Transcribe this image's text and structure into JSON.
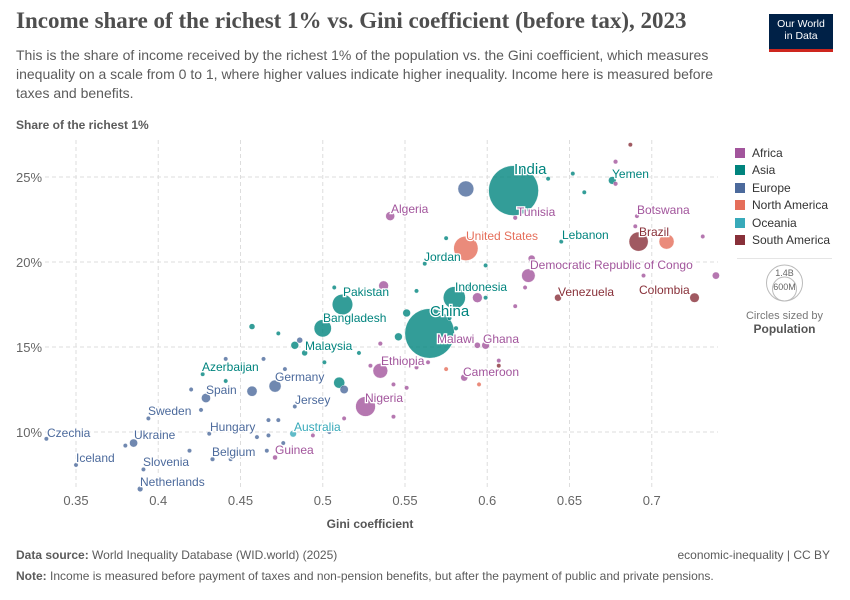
{
  "header": {
    "title": "Income share of the richest 1% vs. Gini coefficient (before tax), 2023",
    "subtitle": "This is the share of income received by the richest 1% of the population vs. the Gini coefficient, which measures inequality on a scale from 0 to 1, where higher values indicate higher inequality. Income here is measured before taxes and benefits.",
    "logo": [
      "Our World",
      "in Data"
    ]
  },
  "legend": {
    "regions": [
      {
        "name": "Africa",
        "color": "#a2559c"
      },
      {
        "name": "Asia",
        "color": "#00847e"
      },
      {
        "name": "Europe",
        "color": "#4c6a9c"
      },
      {
        "name": "North America",
        "color": "#e56e5a"
      },
      {
        "name": "Oceania",
        "color": "#38aaba"
      },
      {
        "name": "South America",
        "color": "#883039"
      }
    ],
    "size_large": "1.4B",
    "size_small": "600M",
    "size_caption": "Circles sized by",
    "size_variable": "Population"
  },
  "footer": {
    "source_label": "Data source:",
    "source": "World Inequality Database (WID.world) (2025)",
    "license": "economic-inequality | CC BY",
    "note_label": "Note:",
    "note": "Income is measured before payment of taxes and non-pension benefits, but after the payment of public and private pensions."
  },
  "chart_data": {
    "type": "scatter",
    "xlabel": "Gini coefficient",
    "ylabel": "Share of the richest 1%",
    "xlim": [
      0.331,
      0.74
    ],
    "ylim": [
      6.3,
      27.2
    ],
    "x_ticks": [
      0.35,
      0.4,
      0.45,
      0.5,
      0.55,
      0.6,
      0.65,
      0.7
    ],
    "x_tick_labels": [
      "0.35",
      "0.4",
      "0.45",
      "0.5",
      "0.55",
      "0.6",
      "0.65",
      "0.7"
    ],
    "y_ticks": [
      10,
      15,
      20,
      25
    ],
    "y_tick_labels": [
      "10%",
      "15%",
      "20%",
      "25%"
    ],
    "grid": true,
    "legend_position": "right",
    "points": [
      {
        "label": "India",
        "region": "Asia",
        "x": 0.616,
        "y": 24.2,
        "pop": 1430
      },
      {
        "label": "China",
        "region": "Asia",
        "x": 0.565,
        "y": 15.8,
        "pop": 1410
      },
      {
        "label": "United States",
        "region": "North America",
        "x": 0.587,
        "y": 20.8,
        "pop": 340
      },
      {
        "label": "Indonesia",
        "region": "Asia",
        "x": 0.58,
        "y": 17.9,
        "pop": 280
      },
      {
        "label": "Pakistan",
        "region": "Asia",
        "x": 0.512,
        "y": 17.5,
        "pop": 240
      },
      {
        "label": "Nigeria",
        "region": "Africa",
        "x": 0.526,
        "y": 11.5,
        "pop": 225
      },
      {
        "label": "Brazil",
        "region": "South America",
        "x": 0.692,
        "y": 21.2,
        "pop": 210
      },
      {
        "label": "Bangladesh",
        "region": "Asia",
        "x": 0.5,
        "y": 16.1,
        "pop": 172
      },
      {
        "label": "Ethiopia",
        "region": "Africa",
        "x": 0.535,
        "y": 13.6,
        "pop": 125
      },
      {
        "label": "Democratic Republic of Congo",
        "region": "Africa",
        "x": 0.625,
        "y": 19.2,
        "pop": 105
      },
      {
        "label": "Germany",
        "region": "Europe",
        "x": 0.471,
        "y": 12.7,
        "pop": 84
      },
      {
        "label": "Yemen",
        "region": "Asia",
        "x": 0.676,
        "y": 24.8,
        "pop": 34
      },
      {
        "label": "Tunisia",
        "region": "Africa",
        "x": 0.617,
        "y": 22.6,
        "pop": 12
      },
      {
        "label": "Algeria",
        "region": "Africa",
        "x": 0.541,
        "y": 22.7,
        "pop": 46
      },
      {
        "label": "Botswana",
        "region": "Africa",
        "x": 0.691,
        "y": 22.7,
        "pop": 3
      },
      {
        "label": "Lebanon",
        "region": "Asia",
        "x": 0.645,
        "y": 21.2,
        "pop": 5
      },
      {
        "label": "Jordan",
        "region": "Asia",
        "x": 0.562,
        "y": 19.9,
        "pop": 11
      },
      {
        "label": "Venezuela",
        "region": "South America",
        "x": 0.643,
        "y": 17.9,
        "pop": 28
      },
      {
        "label": "Colombia",
        "region": "South America",
        "x": 0.726,
        "y": 17.9,
        "pop": 52
      },
      {
        "label": "Malawi",
        "region": "Africa",
        "x": 0.594,
        "y": 15.1,
        "pop": 21
      },
      {
        "label": "Ghana",
        "region": "Africa",
        "x": 0.599,
        "y": 15.1,
        "pop": 34
      },
      {
        "label": "Cameroon",
        "region": "Africa",
        "x": 0.586,
        "y": 13.2,
        "pop": 28
      },
      {
        "label": "Malaysia",
        "region": "Asia",
        "x": 0.483,
        "y": 15.1,
        "pop": 35
      },
      {
        "label": "Azerbaijan",
        "region": "Asia",
        "x": 0.427,
        "y": 13.4,
        "pop": 10
      },
      {
        "label": "Spain",
        "region": "Europe",
        "x": 0.429,
        "y": 12.0,
        "pop": 48
      },
      {
        "label": "Jersey",
        "region": "Europe",
        "x": 0.483,
        "y": 11.5,
        "pop": 0.1
      },
      {
        "label": "Sweden",
        "region": "Europe",
        "x": 0.394,
        "y": 10.8,
        "pop": 10
      },
      {
        "label": "Hungary",
        "region": "Europe",
        "x": 0.431,
        "y": 9.9,
        "pop": 10
      },
      {
        "label": "Australia",
        "region": "Oceania",
        "x": 0.482,
        "y": 9.9,
        "pop": 26
      },
      {
        "label": "Czechia",
        "region": "Europe",
        "x": 0.332,
        "y": 9.6,
        "pop": 11
      },
      {
        "label": "Ukraine",
        "region": "Europe",
        "x": 0.385,
        "y": 9.35,
        "pop": 38
      },
      {
        "label": "Belgium",
        "region": "Europe",
        "x": 0.433,
        "y": 8.4,
        "pop": 12
      },
      {
        "label": "Guinea",
        "region": "Africa",
        "x": 0.471,
        "y": 8.5,
        "pop": 14
      },
      {
        "label": "Iceland",
        "region": "Europe",
        "x": 0.35,
        "y": 8.06,
        "pop": 0.4
      },
      {
        "label": "Slovenia",
        "region": "Europe",
        "x": 0.391,
        "y": 7.8,
        "pop": 2
      },
      {
        "label": "Netherlands",
        "region": "Europe",
        "x": 0.389,
        "y": 6.65,
        "pop": 18
      },
      {
        "region": "South America",
        "x": 0.687,
        "y": 26.9,
        "pop": 10
      },
      {
        "region": "Africa",
        "x": 0.678,
        "y": 25.9,
        "pop": 12
      },
      {
        "region": "Africa",
        "x": 0.678,
        "y": 24.6,
        "pop": 12
      },
      {
        "region": "Asia",
        "x": 0.652,
        "y": 25.2,
        "pop": 4
      },
      {
        "region": "Asia",
        "x": 0.637,
        "y": 24.9,
        "pop": 8
      },
      {
        "region": "Asia",
        "x": 0.659,
        "y": 24.1,
        "pop": 4
      },
      {
        "region": "Europe",
        "x": 0.587,
        "y": 24.3,
        "pop": 145
      },
      {
        "region": "Africa",
        "x": 0.69,
        "y": 22.1,
        "pop": 6
      },
      {
        "region": "North America",
        "x": 0.709,
        "y": 21.2,
        "pop": 130
      },
      {
        "region": "Africa",
        "x": 0.731,
        "y": 21.5,
        "pop": 5
      },
      {
        "region": "Africa",
        "x": 0.739,
        "y": 19.2,
        "pop": 30
      },
      {
        "region": "Africa",
        "x": 0.695,
        "y": 19.2,
        "pop": 6
      },
      {
        "region": "Africa",
        "x": 0.656,
        "y": 19.9,
        "pop": 6
      },
      {
        "region": "Africa",
        "x": 0.668,
        "y": 18.1,
        "pop": 8
      },
      {
        "region": "Asia",
        "x": 0.575,
        "y": 21.4,
        "pop": 8
      },
      {
        "region": "Africa",
        "x": 0.627,
        "y": 20.2,
        "pop": 28
      },
      {
        "region": "Asia",
        "x": 0.599,
        "y": 19.8,
        "pop": 8
      },
      {
        "region": "Asia",
        "x": 0.588,
        "y": 18.5,
        "pop": 8
      },
      {
        "region": "Africa",
        "x": 0.594,
        "y": 17.9,
        "pop": 55
      },
      {
        "region": "Asia",
        "x": 0.599,
        "y": 17.9,
        "pop": 6
      },
      {
        "region": "Africa",
        "x": 0.617,
        "y": 17.4,
        "pop": 6
      },
      {
        "region": "Africa",
        "x": 0.623,
        "y": 18.5,
        "pop": 6
      },
      {
        "region": "Africa",
        "x": 0.537,
        "y": 18.6,
        "pop": 55
      },
      {
        "region": "Asia",
        "x": 0.507,
        "y": 18.5,
        "pop": 5
      },
      {
        "region": "Asia",
        "x": 0.557,
        "y": 18.3,
        "pop": 5
      },
      {
        "region": "Asia",
        "x": 0.551,
        "y": 17.0,
        "pop": 35
      },
      {
        "region": "Asia",
        "x": 0.546,
        "y": 15.6,
        "pop": 35
      },
      {
        "region": "Africa",
        "x": 0.535,
        "y": 15.2,
        "pop": 12
      },
      {
        "region": "Asia",
        "x": 0.577,
        "y": 16.7,
        "pop": 12
      },
      {
        "region": "Asia",
        "x": 0.581,
        "y": 16.1,
        "pop": 12
      },
      {
        "region": "Asia",
        "x": 0.457,
        "y": 16.2,
        "pop": 20
      },
      {
        "region": "Asia",
        "x": 0.473,
        "y": 15.8,
        "pop": 6
      },
      {
        "region": "Europe",
        "x": 0.486,
        "y": 15.4,
        "pop": 20
      },
      {
        "region": "Asia",
        "x": 0.489,
        "y": 14.65,
        "pop": 20
      },
      {
        "region": "Europe",
        "x": 0.464,
        "y": 14.3,
        "pop": 6
      },
      {
        "region": "Asia",
        "x": 0.522,
        "y": 14.65,
        "pop": 8
      },
      {
        "region": "Asia",
        "x": 0.501,
        "y": 14.1,
        "pop": 10
      },
      {
        "region": "Africa",
        "x": 0.529,
        "y": 13.9,
        "pop": 10
      },
      {
        "region": "Africa",
        "x": 0.557,
        "y": 13.8,
        "pop": 10
      },
      {
        "region": "North America",
        "x": 0.575,
        "y": 13.7,
        "pop": 6
      },
      {
        "region": "Africa",
        "x": 0.564,
        "y": 14.1,
        "pop": 10
      },
      {
        "region": "Africa",
        "x": 0.607,
        "y": 14.2,
        "pop": 8
      },
      {
        "region": "South America",
        "x": 0.607,
        "y": 13.9,
        "pop": 6
      },
      {
        "region": "Asia",
        "x": 0.51,
        "y": 12.9,
        "pop": 70
      },
      {
        "region": "Europe",
        "x": 0.513,
        "y": 12.5,
        "pop": 40
      },
      {
        "region": "Africa",
        "x": 0.543,
        "y": 12.8,
        "pop": 8
      },
      {
        "region": "Africa",
        "x": 0.551,
        "y": 12.6,
        "pop": 10
      },
      {
        "region": "North America",
        "x": 0.595,
        "y": 12.8,
        "pop": 6
      },
      {
        "region": "Europe",
        "x": 0.457,
        "y": 12.4,
        "pop": 60
      },
      {
        "region": "Asia",
        "x": 0.441,
        "y": 13.0,
        "pop": 5
      },
      {
        "region": "Europe",
        "x": 0.42,
        "y": 12.5,
        "pop": 6
      },
      {
        "region": "Europe",
        "x": 0.426,
        "y": 11.3,
        "pop": 6
      },
      {
        "region": "Europe",
        "x": 0.477,
        "y": 13.7,
        "pop": 10
      },
      {
        "region": "Europe",
        "x": 0.441,
        "y": 14.3,
        "pop": 6
      },
      {
        "region": "Africa",
        "x": 0.513,
        "y": 10.8,
        "pop": 8
      },
      {
        "region": "Africa",
        "x": 0.543,
        "y": 10.9,
        "pop": 8
      },
      {
        "region": "Europe",
        "x": 0.467,
        "y": 10.7,
        "pop": 6
      },
      {
        "region": "Europe",
        "x": 0.473,
        "y": 10.7,
        "pop": 6
      },
      {
        "region": "Europe",
        "x": 0.46,
        "y": 9.7,
        "pop": 6
      },
      {
        "region": "Europe",
        "x": 0.467,
        "y": 9.8,
        "pop": 6
      },
      {
        "region": "Europe",
        "x": 0.476,
        "y": 9.35,
        "pop": 6
      },
      {
        "region": "Africa",
        "x": 0.494,
        "y": 9.8,
        "pop": 8
      },
      {
        "region": "Europe",
        "x": 0.504,
        "y": 10.0,
        "pop": 6
      },
      {
        "region": "Europe",
        "x": 0.38,
        "y": 9.2,
        "pop": 6
      },
      {
        "region": "Europe",
        "x": 0.419,
        "y": 8.9,
        "pop": 6
      },
      {
        "region": "Europe",
        "x": 0.444,
        "y": 8.4,
        "pop": 4
      },
      {
        "region": "Europe",
        "x": 0.466,
        "y": 8.9,
        "pop": 6
      }
    ]
  }
}
